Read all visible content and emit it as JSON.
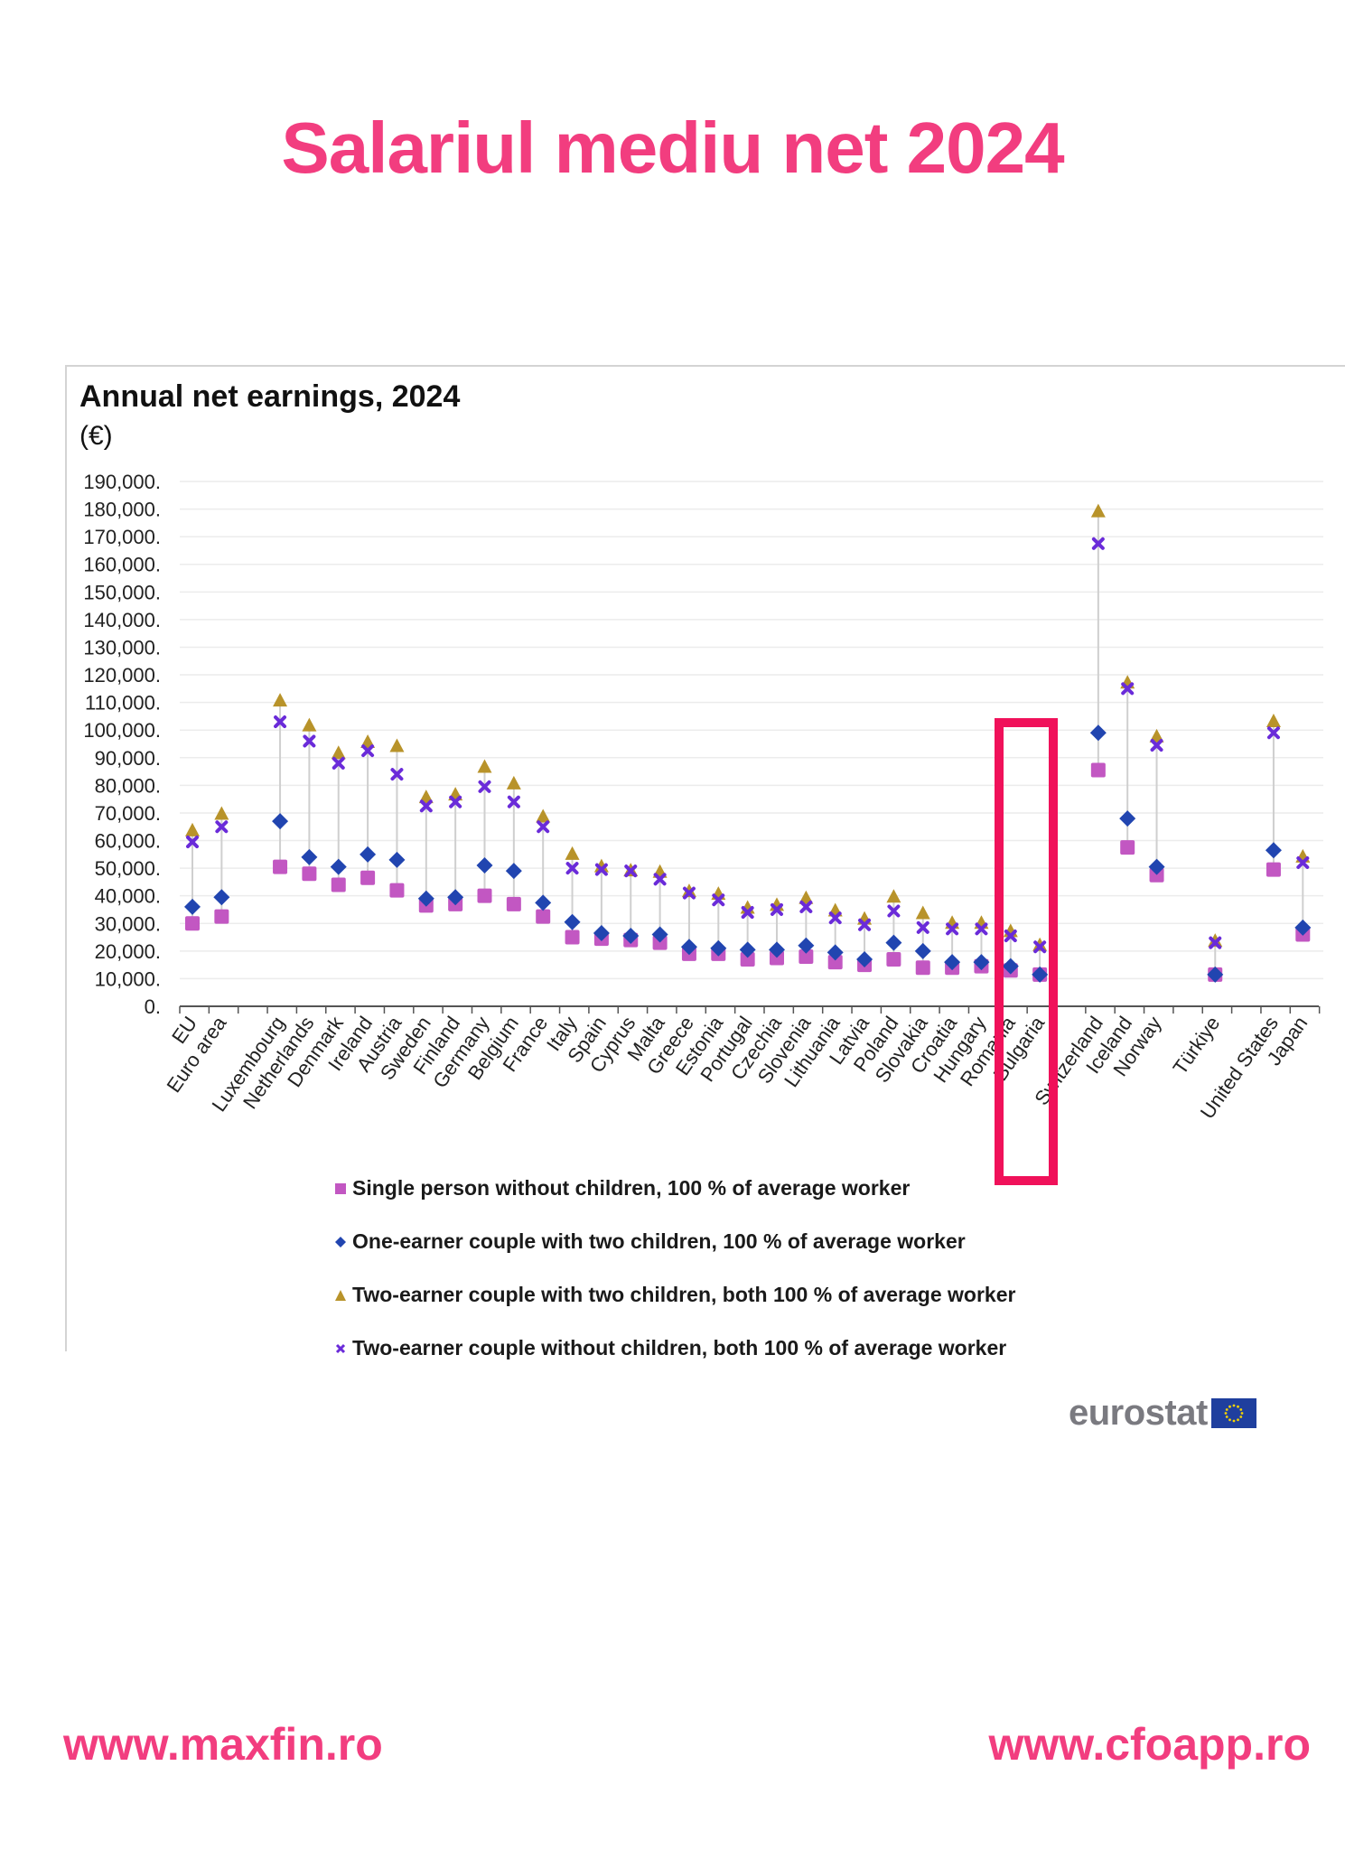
{
  "header": {
    "title": "Salariul mediu net 2024"
  },
  "footer": {
    "left_link": "www.maxfin.ro",
    "right_link": "www.cfoapp.ro"
  },
  "branding": {
    "source_logo_text": "eurostat",
    "flag_icon": "eu-flag-icon"
  },
  "highlight": {
    "color": "#f0115a",
    "countries": [
      "Romania",
      "Bulgaria"
    ]
  },
  "chart_data": {
    "type": "scatter",
    "title": "Annual net earnings, 2024",
    "unit": "(€)",
    "xlabel": "",
    "ylabel": "",
    "ylim": [
      0,
      190000
    ],
    "grid": true,
    "legend_position": "bottom",
    "y_ticks": [
      "0.",
      "10,000.",
      "20,000.",
      "30,000.",
      "40,000.",
      "50,000.",
      "60,000.",
      "70,000.",
      "80,000.",
      "90,000.",
      "100,000.",
      "110,000.",
      "120,000.",
      "130,000.",
      "140,000.",
      "150,000.",
      "160,000.",
      "170,000.",
      "180,000.",
      "190,000."
    ],
    "categories": [
      "EU",
      "Euro area",
      "",
      "Luxembourg",
      "Netherlands",
      "Denmark",
      "Ireland",
      "Austria",
      "Sweden",
      "Finland",
      "Germany",
      "Belgium",
      "France",
      "Italy",
      "Spain",
      "Cyprus",
      "Malta",
      "Greece",
      "Estonia",
      "Portugal",
      "Czechia",
      "Slovenia",
      "Lithuania",
      "Latvia",
      "Poland",
      "Slovakia",
      "Croatia",
      "Hungary",
      "Romania",
      "Bulgaria",
      "",
      "Switzerland",
      "Iceland",
      "Norway",
      "",
      "Türkiye",
      "",
      "United States",
      "Japan"
    ],
    "series": [
      {
        "name": "Single person without children, 100 % of average worker",
        "marker": "square",
        "color": "#c257c2",
        "values": [
          30000,
          32500,
          null,
          50500,
          48000,
          44000,
          46500,
          42000,
          36500,
          37000,
          40000,
          37000,
          32500,
          25000,
          24500,
          24000,
          23000,
          19000,
          19000,
          17000,
          17500,
          18000,
          16000,
          15000,
          17000,
          14000,
          14000,
          14500,
          13000,
          11500,
          null,
          85500,
          57500,
          47500,
          null,
          11500,
          null,
          49500,
          26000
        ]
      },
      {
        "name": "One-earner couple with two children, 100 % of average worker",
        "marker": "diamond",
        "color": "#2145b0",
        "values": [
          36000,
          39500,
          null,
          67000,
          54000,
          50500,
          55000,
          53000,
          39000,
          39500,
          51000,
          49000,
          37500,
          30500,
          26500,
          25500,
          26000,
          21500,
          21000,
          20500,
          20500,
          22000,
          19500,
          17000,
          23000,
          20000,
          16000,
          16000,
          14500,
          11500,
          null,
          99000,
          68000,
          50500,
          null,
          11500,
          null,
          56500,
          28500
        ]
      },
      {
        "name": "Two-earner couple with two children, both 100 % of average worker",
        "marker": "triangle",
        "color": "#b8932a",
        "values": [
          63500,
          69500,
          null,
          110500,
          101500,
          91500,
          95500,
          94000,
          75500,
          76500,
          86500,
          80500,
          68500,
          55000,
          50500,
          49000,
          48500,
          41500,
          40500,
          35500,
          36500,
          39000,
          34500,
          31500,
          39500,
          33500,
          30000,
          30000,
          27000,
          22000,
          null,
          179000,
          117000,
          97500,
          null,
          23500,
          null,
          103000,
          54000
        ]
      },
      {
        "name": "Two-earner couple without children, both 100 % of average worker",
        "marker": "cross",
        "color": "#6a2bd9",
        "values": [
          59500,
          65000,
          null,
          103000,
          96000,
          88000,
          92500,
          84000,
          72500,
          74000,
          79500,
          74000,
          65000,
          50000,
          49500,
          49000,
          46000,
          41000,
          38500,
          34000,
          35000,
          36000,
          32000,
          29500,
          34500,
          28500,
          28000,
          28000,
          25500,
          21500,
          null,
          167500,
          115000,
          94500,
          null,
          23000,
          null,
          99000,
          52000
        ]
      }
    ]
  }
}
